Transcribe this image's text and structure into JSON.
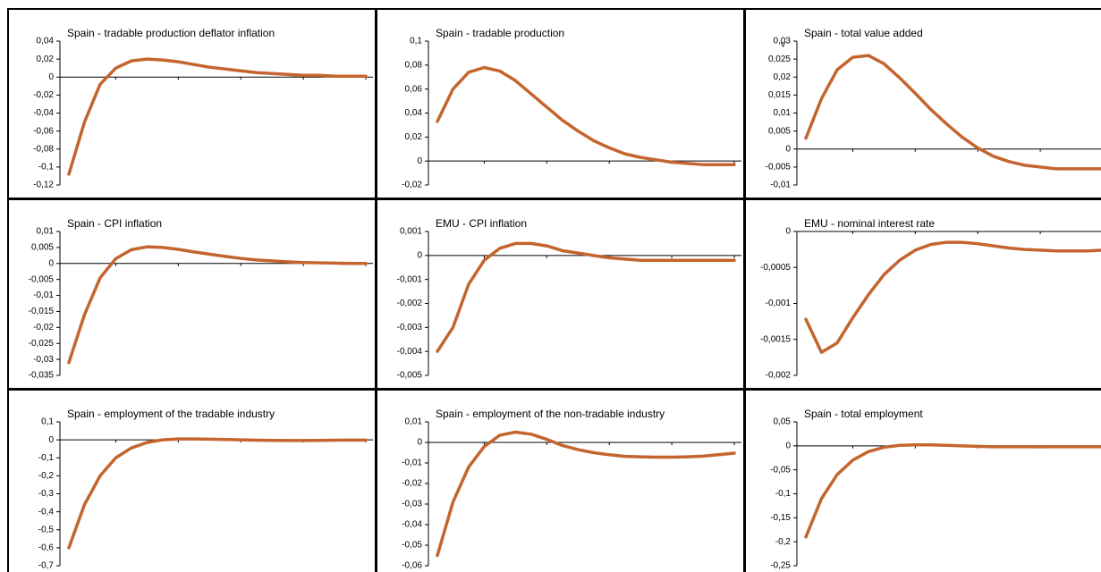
{
  "chart_data": [
    {
      "type": "line",
      "title": "Spain - tradable production deflator inflation",
      "color": "#c4652f",
      "values": [
        -0.108,
        -0.05,
        -0.008,
        0.01,
        0.018,
        0.02,
        0.019,
        0.017,
        0.014,
        0.011,
        0.009,
        0.007,
        0.005,
        0.004,
        0.003,
        0.002,
        0.002,
        0.001,
        0.001,
        0.001
      ],
      "ylim": [
        -0.12,
        0.04
      ],
      "yticks": [
        {
          "value": -0.12,
          "label": "-0,12"
        },
        {
          "value": -0.1,
          "label": "-0,1"
        },
        {
          "value": -0.08,
          "label": "-0,08"
        },
        {
          "value": -0.06,
          "label": "-0,06"
        },
        {
          "value": -0.04,
          "label": "-0,04"
        },
        {
          "value": -0.02,
          "label": "-0,02"
        },
        0,
        {
          "value": 0.02,
          "label": "0,02"
        },
        {
          "value": 0.04,
          "label": "0,04"
        }
      ]
    },
    {
      "type": "line",
      "title": "Spain - tradable production",
      "color": "#c4652f",
      "values": [
        0.033,
        0.06,
        0.074,
        0.078,
        0.075,
        0.067,
        0.056,
        0.045,
        0.034,
        0.025,
        0.017,
        0.011,
        0.006,
        0.003,
        0.001,
        -0.001,
        -0.002,
        -0.003,
        -0.003,
        -0.003
      ],
      "ylim": [
        -0.02,
        0.1
      ],
      "yticks": [
        {
          "value": -0.02,
          "label": "-0,02"
        },
        0,
        {
          "value": 0.02,
          "label": "0,02"
        },
        {
          "value": 0.04,
          "label": "0,04"
        },
        {
          "value": 0.06,
          "label": "0,06"
        },
        {
          "value": 0.08,
          "label": "0,08"
        },
        {
          "value": 0.1,
          "label": "0,1"
        }
      ]
    },
    {
      "type": "line",
      "title": "Spain - total value added",
      "annotation": "v",
      "color": "#c4652f",
      "values": [
        0.003,
        0.014,
        0.022,
        0.0255,
        0.026,
        0.0237,
        0.0198,
        0.0155,
        0.011,
        0.007,
        0.0033,
        0.0003,
        -0.002,
        -0.0035,
        -0.0045,
        -0.005,
        -0.0055,
        -0.0055,
        -0.0055,
        -0.0055
      ],
      "ylim": [
        -0.01,
        0.03
      ],
      "yticks": [
        {
          "value": -0.01,
          "label": "-0,01"
        },
        {
          "value": -0.005,
          "label": "-0,005"
        },
        0,
        {
          "value": 0.005,
          "label": "0,005"
        },
        {
          "value": 0.01,
          "label": "0,01"
        },
        {
          "value": 0.015,
          "label": "0,015"
        },
        {
          "value": 0.02,
          "label": "0,02"
        },
        {
          "value": 0.025,
          "label": "0,025"
        },
        {
          "value": 0.03,
          "label": "0,03"
        }
      ]
    },
    {
      "type": "line",
      "title": "Spain - CPI inflation",
      "color": "#c4652f",
      "values": [
        -0.031,
        -0.016,
        -0.0045,
        0.0015,
        0.0043,
        0.0052,
        0.005,
        0.0044,
        0.0036,
        0.0029,
        0.0022,
        0.0016,
        0.0011,
        0.0008,
        0.0005,
        0.0003,
        0.0002,
        0.0001,
        0,
        0
      ],
      "ylim": [
        -0.035,
        0.01
      ],
      "yticks": [
        {
          "value": -0.035,
          "label": "-0,035"
        },
        {
          "value": -0.03,
          "label": "-0,03"
        },
        {
          "value": -0.025,
          "label": "-0,025"
        },
        {
          "value": -0.02,
          "label": "-0,02"
        },
        {
          "value": -0.015,
          "label": "-0,015"
        },
        {
          "value": -0.01,
          "label": "-0,01"
        },
        {
          "value": -0.005,
          "label": "-0,005"
        },
        0,
        {
          "value": 0.005,
          "label": "0,005"
        },
        {
          "value": 0.01,
          "label": "0,01"
        }
      ]
    },
    {
      "type": "line",
      "title": "EMU - CPI inflation",
      "color": "#c4652f",
      "values": [
        -0.004,
        -0.003,
        -0.0012,
        -0.0002,
        0.0003,
        0.0005,
        0.0005,
        0.0004,
        0.0002,
        0.0001,
        0,
        -0.0001,
        -0.00015,
        -0.0002,
        -0.0002,
        -0.0002,
        -0.0002,
        -0.0002,
        -0.0002,
        -0.0002
      ],
      "ylim": [
        -0.005,
        0.001
      ],
      "yticks": [
        {
          "value": -0.005,
          "label": "-0,005"
        },
        {
          "value": -0.004,
          "label": "-0,004"
        },
        {
          "value": -0.003,
          "label": "-0,003"
        },
        {
          "value": -0.002,
          "label": "-0,002"
        },
        {
          "value": -0.001,
          "label": "-0,001"
        },
        0,
        {
          "value": 0.001,
          "label": "0,001"
        }
      ]
    },
    {
      "type": "line",
      "title": "EMU - nominal interest rate",
      "color": "#c4652f",
      "values": [
        -0.00122,
        -0.00168,
        -0.00155,
        -0.0012,
        -0.00088,
        -0.0006,
        -0.0004,
        -0.00026,
        -0.00018,
        -0.00015,
        -0.00015,
        -0.00017,
        -0.0002,
        -0.00023,
        -0.00025,
        -0.00026,
        -0.00027,
        -0.00027,
        -0.00027,
        -0.00026
      ],
      "ylim": [
        -0.002,
        0
      ],
      "yticks": [
        {
          "value": -0.002,
          "label": "-0,002"
        },
        {
          "value": -0.0015,
          "label": "-0,0015"
        },
        {
          "value": -0.001,
          "label": "-0,001"
        },
        {
          "value": -0.0005,
          "label": "-0,0005"
        },
        0
      ]
    },
    {
      "type": "line",
      "title": "Spain - employment of the tradable industry",
      "color": "#c4652f",
      "values": [
        -0.6,
        -0.36,
        -0.2,
        -0.1,
        -0.045,
        -0.015,
        0,
        0.005,
        0.005,
        0.004,
        0.002,
        0,
        -0.002,
        -0.003,
        -0.004,
        -0.004,
        -0.003,
        -0.002,
        -0.001,
        -0.001
      ],
      "ylim": [
        -0.7,
        0.1
      ],
      "yticks": [
        {
          "value": -0.7,
          "label": "-0,7"
        },
        {
          "value": -0.6,
          "label": "-0,6"
        },
        {
          "value": -0.5,
          "label": "-0,5"
        },
        {
          "value": -0.4,
          "label": "-0,4"
        },
        {
          "value": -0.3,
          "label": "-0,3"
        },
        {
          "value": -0.2,
          "label": "-0,2"
        },
        {
          "value": -0.1,
          "label": "-0,1"
        },
        0,
        {
          "value": 0.1,
          "label": "0,1"
        }
      ]
    },
    {
      "type": "line",
      "title": "Spain - employment of the non-tradable industry",
      "color": "#c4652f",
      "values": [
        -0.055,
        -0.029,
        -0.012,
        -0.002,
        0.0035,
        0.005,
        0.004,
        0.0015,
        -0.0015,
        -0.0035,
        -0.005,
        -0.006,
        -0.0068,
        -0.007,
        -0.0072,
        -0.0072,
        -0.007,
        -0.0067,
        -0.006,
        -0.0052
      ],
      "ylim": [
        -0.06,
        0.01
      ],
      "yticks": [
        {
          "value": -0.06,
          "label": "-0,06"
        },
        {
          "value": -0.05,
          "label": "-0,05"
        },
        {
          "value": -0.04,
          "label": "-0,04"
        },
        {
          "value": -0.03,
          "label": "-0,03"
        },
        {
          "value": -0.02,
          "label": "-0,02"
        },
        {
          "value": -0.01,
          "label": "-0,01"
        },
        0,
        {
          "value": 0.01,
          "label": "0,01"
        }
      ]
    },
    {
      "type": "line",
      "title": "Spain - total employment",
      "color": "#c4652f",
      "values": [
        -0.19,
        -0.11,
        -0.06,
        -0.03,
        -0.012,
        -0.003,
        0.001,
        0.002,
        0.002,
        0.001,
        0,
        -0.001,
        -0.002,
        -0.002,
        -0.002,
        -0.002,
        -0.002,
        -0.002,
        -0.002,
        -0.002
      ],
      "ylim": [
        -0.25,
        0.05
      ],
      "yticks": [
        {
          "value": -0.25,
          "label": "-0,25"
        },
        {
          "value": -0.2,
          "label": "-0,2"
        },
        {
          "value": -0.15,
          "label": "-0,15"
        },
        {
          "value": -0.1,
          "label": "-0,1"
        },
        {
          "value": -0.05,
          "label": "-0,05"
        },
        0,
        {
          "value": 0.05,
          "label": "0,05"
        }
      ]
    }
  ]
}
